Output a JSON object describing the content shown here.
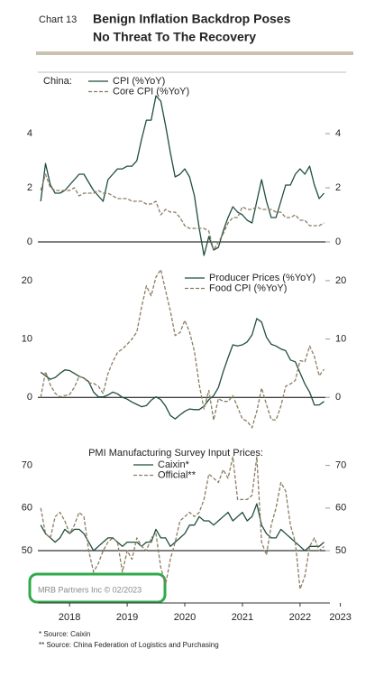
{
  "header": {
    "label": "Chart 13",
    "title": [
      "Benign Inflation Backdrop Poses",
      "No Threat To The Recovery"
    ]
  },
  "watermark": "MRB Partners Inc © 02/2023",
  "notes": [
    "*  Source: Caixin",
    "** Source: China Federation of Logistics and Purchasing"
  ],
  "chart_data": [
    {
      "type": "line",
      "legend_title": "China:",
      "legend_position": "top-left",
      "baseline": 0,
      "xlim": [
        2017.95,
        2023.3
      ],
      "ylim": [
        -0.9,
        6.27
      ],
      "yticks": [
        0,
        2,
        4
      ],
      "x": [
        2018,
        2018.083,
        2018.167,
        2018.25,
        2018.333,
        2018.417,
        2018.5,
        2018.583,
        2018.667,
        2018.75,
        2018.833,
        2018.917,
        2019,
        2019.083,
        2019.167,
        2019.25,
        2019.333,
        2019.417,
        2019.5,
        2019.583,
        2019.667,
        2019.75,
        2019.833,
        2019.917,
        2020,
        2020.083,
        2020.167,
        2020.25,
        2020.333,
        2020.417,
        2020.5,
        2020.583,
        2020.667,
        2020.75,
        2020.833,
        2020.917,
        2021,
        2021.083,
        2021.167,
        2021.25,
        2021.333,
        2021.417,
        2021.5,
        2021.583,
        2021.667,
        2021.75,
        2021.833,
        2021.917,
        2022,
        2022.083,
        2022.167,
        2022.25,
        2022.333,
        2022.417,
        2022.5,
        2022.583,
        2022.667,
        2022.75,
        2022.833,
        2022.917
      ],
      "series": [
        {
          "name": "CPI (%YoY)",
          "color": "#1f4e3d",
          "dash": false,
          "values": [
            1.5,
            2.9,
            2.1,
            1.8,
            1.8,
            1.9,
            2.1,
            2.3,
            2.5,
            2.5,
            2.2,
            1.9,
            1.7,
            1.5,
            2.3,
            2.5,
            2.7,
            2.7,
            2.8,
            2.8,
            3.0,
            3.8,
            4.5,
            4.5,
            5.4,
            5.2,
            4.3,
            3.3,
            2.4,
            2.5,
            2.7,
            2.4,
            1.7,
            0.5,
            -0.5,
            0.2,
            -0.3,
            -0.2,
            0.4,
            0.9,
            1.3,
            1.1,
            1.0,
            0.8,
            0.7,
            1.5,
            2.3,
            1.5,
            0.9,
            0.9,
            1.5,
            2.1,
            2.1,
            2.5,
            2.7,
            2.5,
            2.8,
            2.1,
            1.6,
            1.8
          ]
        },
        {
          "name": "Core CPI (%YoY)",
          "color": "#8c7d62",
          "dash": true,
          "values": [
            1.9,
            2.5,
            2.0,
            1.9,
            1.9,
            1.9,
            1.9,
            2.0,
            1.7,
            1.8,
            1.8,
            1.8,
            1.9,
            1.8,
            1.8,
            1.7,
            1.6,
            1.6,
            1.6,
            1.5,
            1.5,
            1.5,
            1.4,
            1.4,
            1.5,
            1.0,
            1.2,
            1.1,
            1.1,
            0.9,
            0.6,
            0.5,
            0.5,
            0.5,
            0.5,
            0.4,
            -0.3,
            0.0,
            0.3,
            0.7,
            0.9,
            0.9,
            1.3,
            1.2,
            1.2,
            1.3,
            1.2,
            1.2,
            1.2,
            1.1,
            1.1,
            0.9,
            0.9,
            1.0,
            0.8,
            0.8,
            0.6,
            0.6,
            0.6,
            0.7
          ]
        }
      ]
    },
    {
      "type": "line",
      "legend_position": "top-right",
      "baseline": 0,
      "xlim": [
        2017.95,
        2023.3
      ],
      "ylim": [
        -6,
        22
      ],
      "yticks": [
        0,
        10,
        20
      ],
      "x": [
        2018,
        2018.083,
        2018.167,
        2018.25,
        2018.333,
        2018.417,
        2018.5,
        2018.583,
        2018.667,
        2018.75,
        2018.833,
        2018.917,
        2019,
        2019.083,
        2019.167,
        2019.25,
        2019.333,
        2019.417,
        2019.5,
        2019.583,
        2019.667,
        2019.75,
        2019.833,
        2019.917,
        2020,
        2020.083,
        2020.167,
        2020.25,
        2020.333,
        2020.417,
        2020.5,
        2020.583,
        2020.667,
        2020.75,
        2020.833,
        2020.917,
        2021,
        2021.083,
        2021.167,
        2021.25,
        2021.333,
        2021.417,
        2021.5,
        2021.583,
        2021.667,
        2021.75,
        2021.833,
        2021.917,
        2022,
        2022.083,
        2022.167,
        2022.25,
        2022.333,
        2022.417,
        2022.5,
        2022.583,
        2022.667,
        2022.75,
        2022.833,
        2022.917
      ],
      "series": [
        {
          "name": "Producer Prices (%YoY)",
          "color": "#1f4e3d",
          "dash": false,
          "values": [
            4.3,
            3.7,
            3.1,
            3.4,
            4.1,
            4.7,
            4.6,
            4.1,
            3.6,
            3.3,
            2.7,
            0.9,
            0.1,
            0.1,
            0.4,
            0.9,
            0.6,
            0.0,
            -0.3,
            -0.8,
            -1.2,
            -1.6,
            -1.4,
            -0.5,
            0.1,
            -0.4,
            -1.5,
            -3.1,
            -3.7,
            -3.0,
            -2.4,
            -2.0,
            -2.1,
            -2.1,
            -1.5,
            -0.4,
            0.3,
            1.7,
            4.4,
            6.8,
            9.0,
            8.8,
            9.0,
            9.5,
            10.7,
            13.5,
            12.9,
            10.3,
            9.1,
            8.8,
            8.3,
            8.0,
            6.4,
            6.1,
            4.2,
            2.3,
            0.9,
            -1.3,
            -1.3,
            -0.7
          ]
        },
        {
          "name": "Food CPI (%YoY)",
          "color": "#8c7d62",
          "dash": true,
          "values": [
            0.0,
            4.4,
            2.1,
            0.7,
            0.1,
            0.3,
            0.5,
            1.7,
            3.6,
            3.3,
            2.5,
            2.4,
            1.9,
            0.7,
            4.1,
            6.1,
            7.7,
            8.3,
            9.1,
            10.0,
            11.2,
            15.5,
            19.1,
            17.4,
            20.6,
            21.9,
            18.3,
            14.8,
            10.6,
            11.1,
            13.2,
            11.2,
            7.9,
            2.2,
            -2.0,
            1.2,
            -3.9,
            -0.2,
            -0.7,
            -0.7,
            0.3,
            -1.7,
            -3.7,
            -4.1,
            -5.2,
            -2.4,
            1.6,
            -1.2,
            -3.8,
            -3.9,
            -1.5,
            1.9,
            2.3,
            2.9,
            6.3,
            6.1,
            8.8,
            7.0,
            3.7,
            4.8
          ]
        }
      ]
    },
    {
      "type": "line",
      "legend_title": "PMI Manufacturing Survey Input Prices:",
      "legend_position": "top-center",
      "baseline": 50,
      "xlim": [
        2017.95,
        2023.3
      ],
      "ylim": [
        39,
        75
      ],
      "yticks": [
        50,
        60,
        70
      ],
      "xticks": [
        {
          "value": 2018.5,
          "label": "2018"
        },
        {
          "value": 2019.5,
          "label": "2019"
        },
        {
          "value": 2020.5,
          "label": "2020"
        },
        {
          "value": 2021.5,
          "label": "2021"
        },
        {
          "value": 2022.5,
          "label": "2022"
        },
        {
          "value": 2023.2,
          "label": "2023"
        }
      ],
      "x": [
        2018,
        2018.083,
        2018.167,
        2018.25,
        2018.333,
        2018.417,
        2018.5,
        2018.583,
        2018.667,
        2018.75,
        2018.833,
        2018.917,
        2019,
        2019.083,
        2019.167,
        2019.25,
        2019.333,
        2019.417,
        2019.5,
        2019.583,
        2019.667,
        2019.75,
        2019.833,
        2019.917,
        2020,
        2020.083,
        2020.167,
        2020.25,
        2020.333,
        2020.417,
        2020.5,
        2020.583,
        2020.667,
        2020.75,
        2020.833,
        2020.917,
        2021,
        2021.083,
        2021.167,
        2021.25,
        2021.333,
        2021.417,
        2021.5,
        2021.583,
        2021.667,
        2021.75,
        2021.833,
        2021.917,
        2022,
        2022.083,
        2022.167,
        2022.25,
        2022.333,
        2022.417,
        2022.5,
        2022.583,
        2022.667,
        2022.75,
        2022.833,
        2022.917
      ],
      "series": [
        {
          "name": "Caixin*",
          "color": "#1f4e3d",
          "dash": false,
          "values": [
            56,
            54,
            53,
            52,
            53,
            55,
            54,
            55,
            55,
            54,
            52,
            50,
            51,
            52,
            53,
            53,
            52,
            51,
            52,
            52,
            52,
            51,
            52,
            52,
            55,
            53,
            53,
            51,
            52,
            53,
            54,
            56,
            56,
            58,
            57,
            57,
            56,
            57,
            58,
            59,
            57,
            58,
            59,
            57,
            58,
            61,
            56,
            54,
            53,
            53,
            55,
            54,
            53,
            52,
            51,
            50,
            51,
            51,
            51,
            52
          ]
        },
        {
          "name": "Official**",
          "color": "#8c7d62",
          "dash": true,
          "values": [
            60,
            54,
            53,
            58,
            59,
            57,
            54,
            56,
            59,
            58,
            50,
            45,
            47,
            50,
            52,
            53,
            52,
            45,
            50,
            48,
            53,
            51,
            50,
            53,
            54,
            46,
            42,
            48,
            52,
            57,
            58,
            59,
            58,
            59,
            62,
            68,
            67,
            66,
            69,
            67,
            72,
            62,
            62,
            62,
            63,
            72,
            52,
            49,
            56,
            60,
            66,
            64,
            56,
            52,
            41,
            44,
            51,
            53,
            50,
            51
          ]
        }
      ]
    }
  ]
}
